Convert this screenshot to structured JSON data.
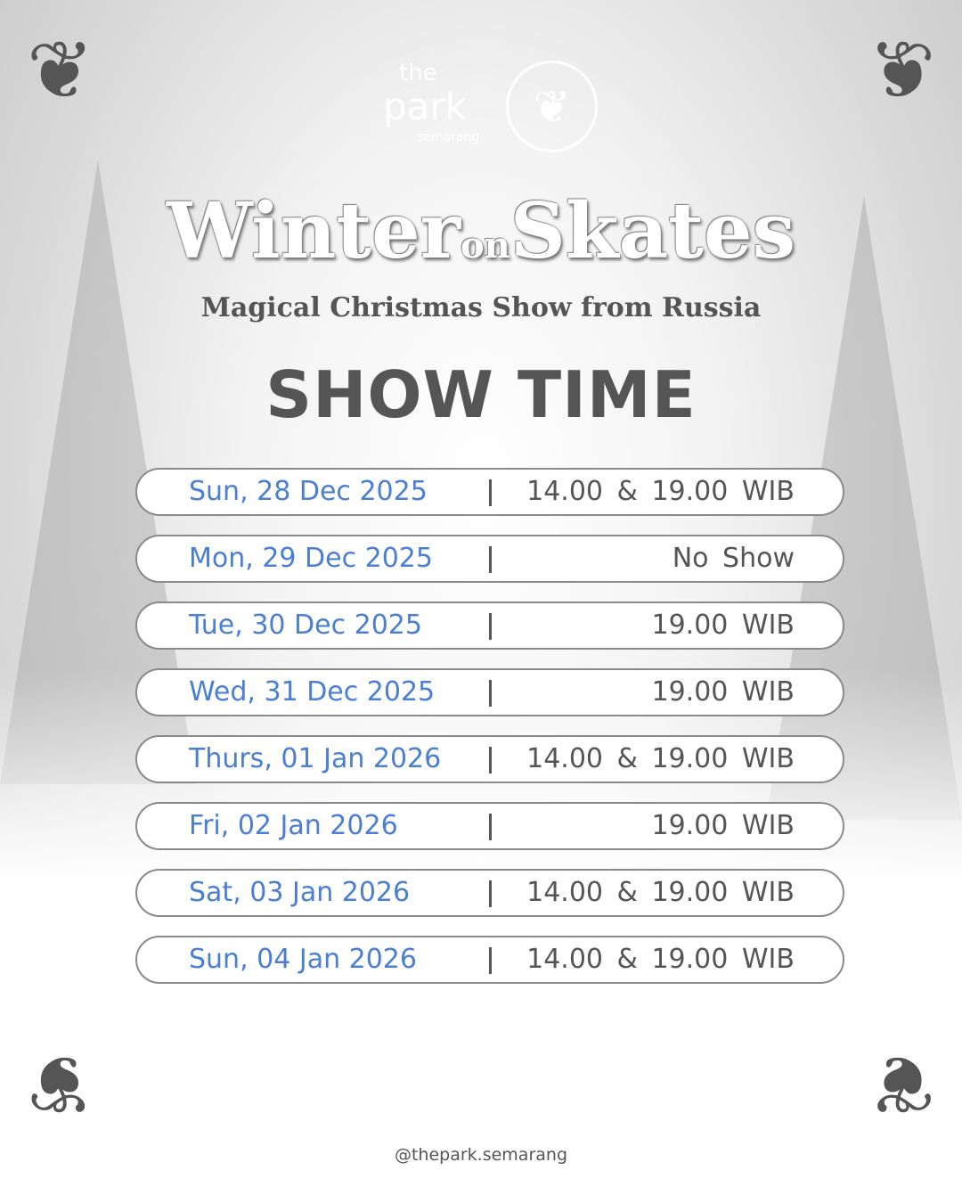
{
  "logo": {
    "the": "the",
    "park": "park",
    "city": "semarang"
  },
  "title": {
    "main_a": "Winter",
    "main_on": "on",
    "main_b": "Skates",
    "subtitle": "Magical Christmas Show from Russia"
  },
  "heading": "SHOW TIME",
  "schedule": [
    {
      "date": "Sun, 28 Dec 2025",
      "time": "14.00 & 19.00 WIB"
    },
    {
      "date": "Mon, 29 Dec 2025",
      "time": "No Show"
    },
    {
      "date": "Tue, 30 Dec 2025",
      "time": "19.00 WIB"
    },
    {
      "date": "Wed, 31 Dec 2025",
      "time": "19.00 WIB"
    },
    {
      "date": "Thurs, 01 Jan 2026",
      "time": "14.00 & 19.00 WIB"
    },
    {
      "date": "Fri, 02 Jan 2026",
      "time": "19.00 WIB"
    },
    {
      "date": "Sat, 03 Jan 2026",
      "time": "14.00 & 19.00 WIB"
    },
    {
      "date": "Sun, 04 Jan 2026",
      "time": "14.00 & 19.00 WIB"
    }
  ],
  "footer": {
    "handle": "@thepark.semarang"
  },
  "colors": {
    "date": "#4a7fd4",
    "text": "#555555",
    "accent_border": "#8a8a8a"
  },
  "icons": {
    "corner": "ornament-flourish",
    "emblem": "tree-emblem"
  }
}
